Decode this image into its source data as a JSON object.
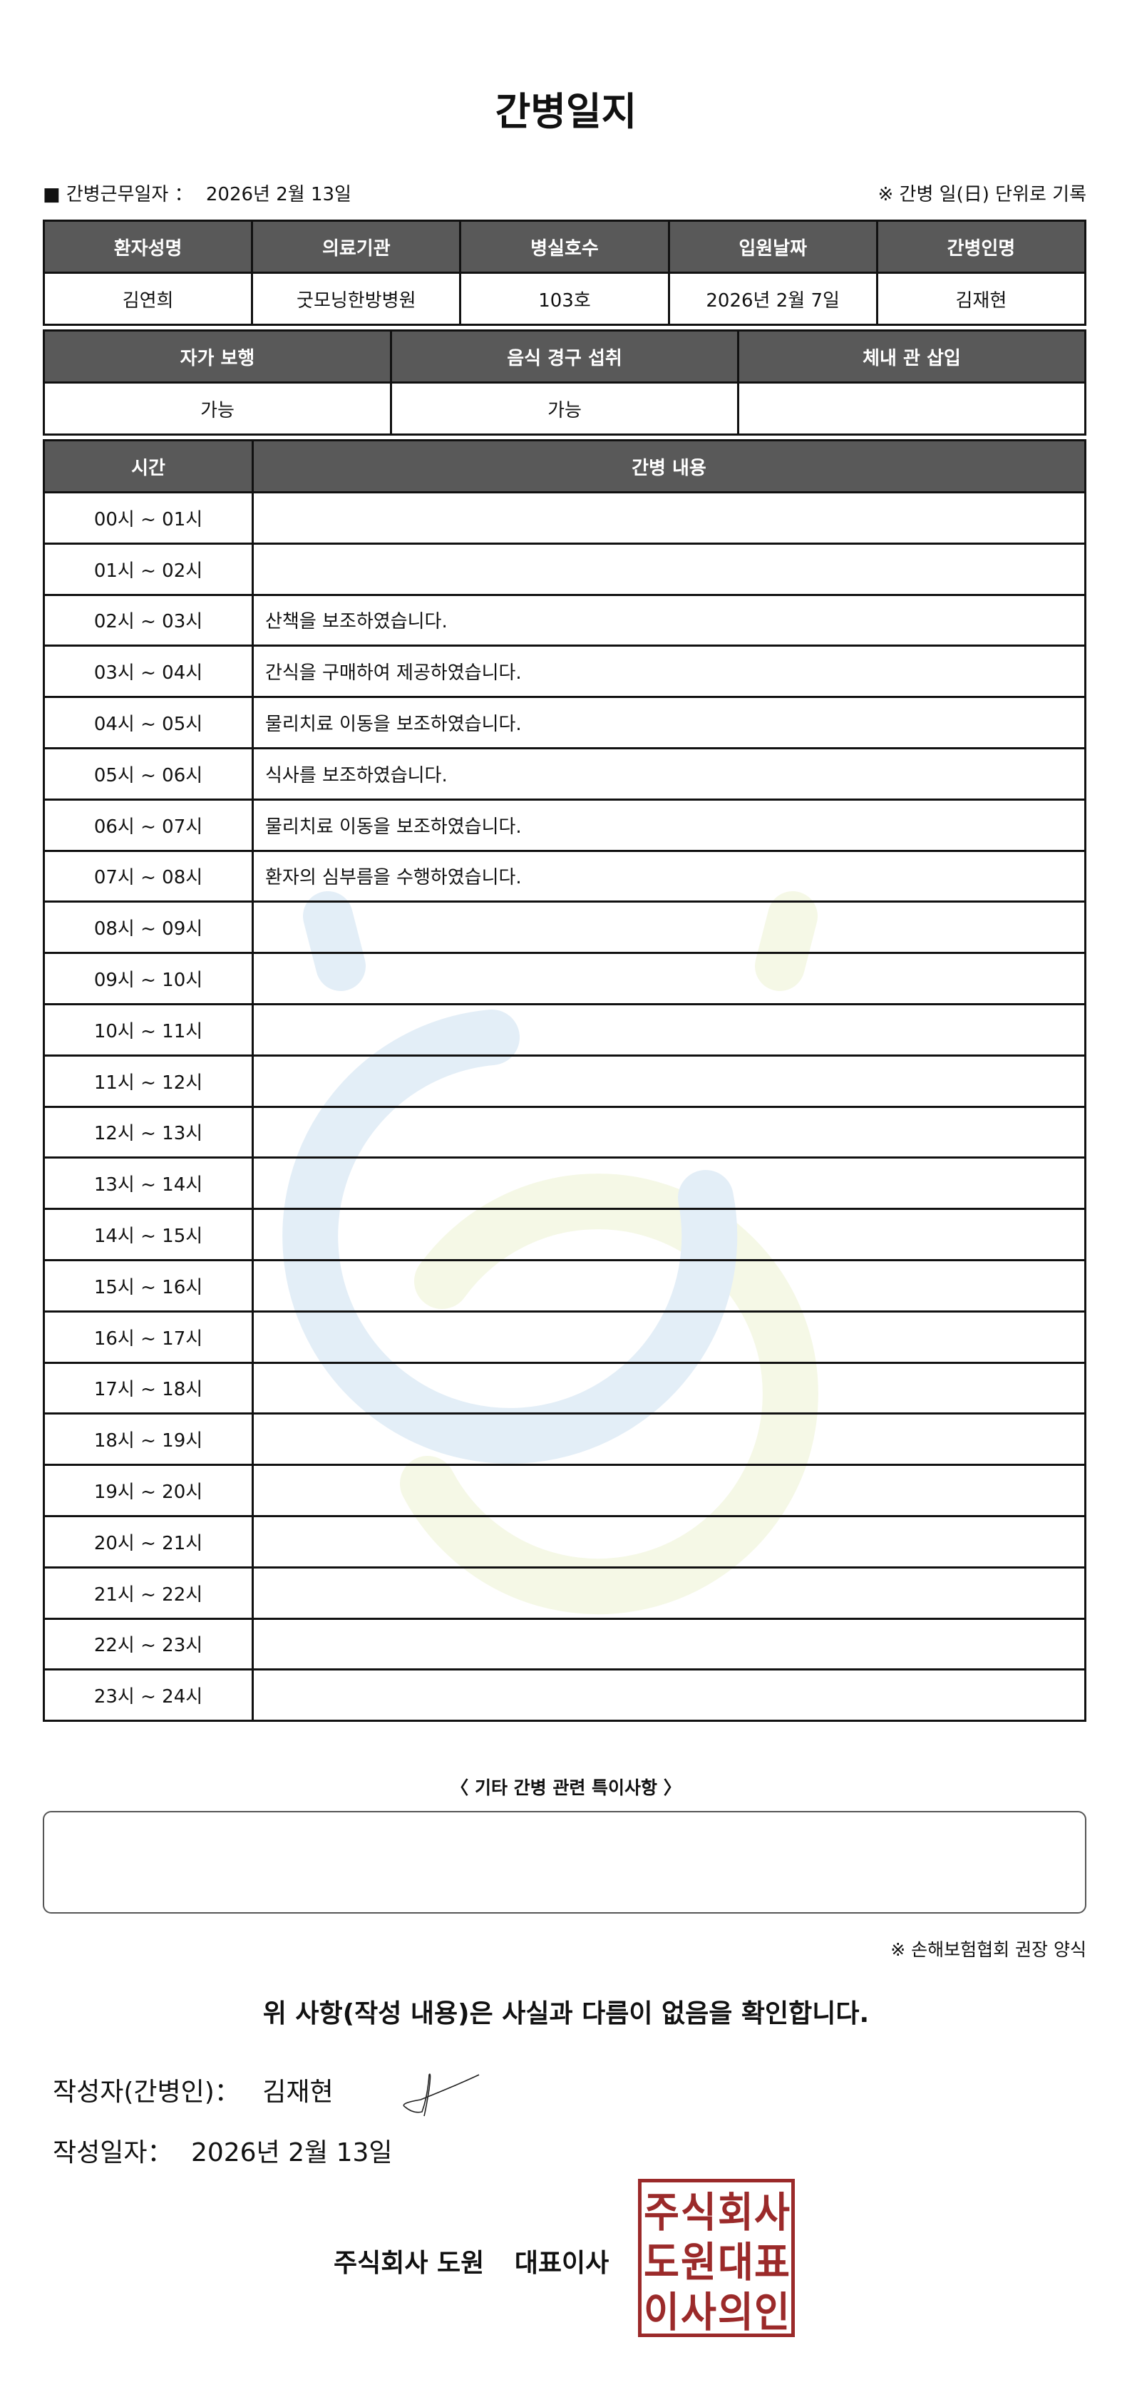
{
  "title": "간병일지",
  "work_date_label": "■ 간병근무일자 ：",
  "work_date": "2026년 2월 13일",
  "record_note": "※ 간병 일(日) 단위로 기록",
  "info_table": {
    "headers": [
      "환자성명",
      "의료기관",
      "병실호수",
      "입원날짜",
      "간병인명"
    ],
    "values": [
      "김연희",
      "굿모닝한방병원",
      "103호",
      "2026년 2월 7일",
      "김재현"
    ]
  },
  "status_table": {
    "headers": [
      "자가 보행",
      "음식 경구 섭취",
      "체내 관 삽입"
    ],
    "values": [
      "가능",
      "가능",
      ""
    ]
  },
  "log_table": {
    "headers": [
      "시간",
      "간병 내용"
    ],
    "rows": [
      {
        "time": "00시 ~ 01시",
        "content": ""
      },
      {
        "time": "01시 ~ 02시",
        "content": ""
      },
      {
        "time": "02시 ~ 03시",
        "content": "산책을 보조하였습니다."
      },
      {
        "time": "03시 ~ 04시",
        "content": "간식을 구매하여 제공하였습니다."
      },
      {
        "time": "04시 ~ 05시",
        "content": "물리치료 이동을 보조하였습니다."
      },
      {
        "time": "05시 ~ 06시",
        "content": "식사를 보조하였습니다."
      },
      {
        "time": "06시 ~ 07시",
        "content": "물리치료 이동을 보조하였습니다."
      },
      {
        "time": "07시 ~ 08시",
        "content": "환자의 심부름을 수행하였습니다."
      },
      {
        "time": "08시 ~ 09시",
        "content": ""
      },
      {
        "time": "09시 ~ 10시",
        "content": ""
      },
      {
        "time": "10시 ~ 11시",
        "content": ""
      },
      {
        "time": "11시 ~ 12시",
        "content": ""
      },
      {
        "time": "12시 ~ 13시",
        "content": ""
      },
      {
        "time": "13시 ~ 14시",
        "content": ""
      },
      {
        "time": "14시 ~ 15시",
        "content": ""
      },
      {
        "time": "15시 ~ 16시",
        "content": ""
      },
      {
        "time": "16시 ~ 17시",
        "content": ""
      },
      {
        "time": "17시 ~ 18시",
        "content": ""
      },
      {
        "time": "18시 ~ 19시",
        "content": ""
      },
      {
        "time": "19시 ~ 20시",
        "content": ""
      },
      {
        "time": "20시 ~ 21시",
        "content": ""
      },
      {
        "time": "21시 ~ 22시",
        "content": ""
      },
      {
        "time": "22시 ~ 23시",
        "content": ""
      },
      {
        "time": "23시 ~ 24시",
        "content": ""
      }
    ]
  },
  "notes_label": "〈 기타 간병 관련 특이사항 〉",
  "notes_value": "",
  "recommend_note": "※ 손해보험협회 권장 양식",
  "confirm_text": "위 사항(작성 내용)은 사실과 다름이 없음을 확인합니다.",
  "writer_label": "작성자(간병인)：",
  "writer_name": "김재현",
  "write_date_label": "작성일자：",
  "write_date": "2026년 2월 13일",
  "company": "주식회사 도원",
  "ceo_label": "대표이사",
  "stamp_text": "주식회사도원대표이사의인",
  "colors": {
    "header_bg": "#595959",
    "stamp": "#9b2a2a",
    "watermark_blue": "#e3eef7",
    "watermark_yellow": "#f5f8e6"
  }
}
